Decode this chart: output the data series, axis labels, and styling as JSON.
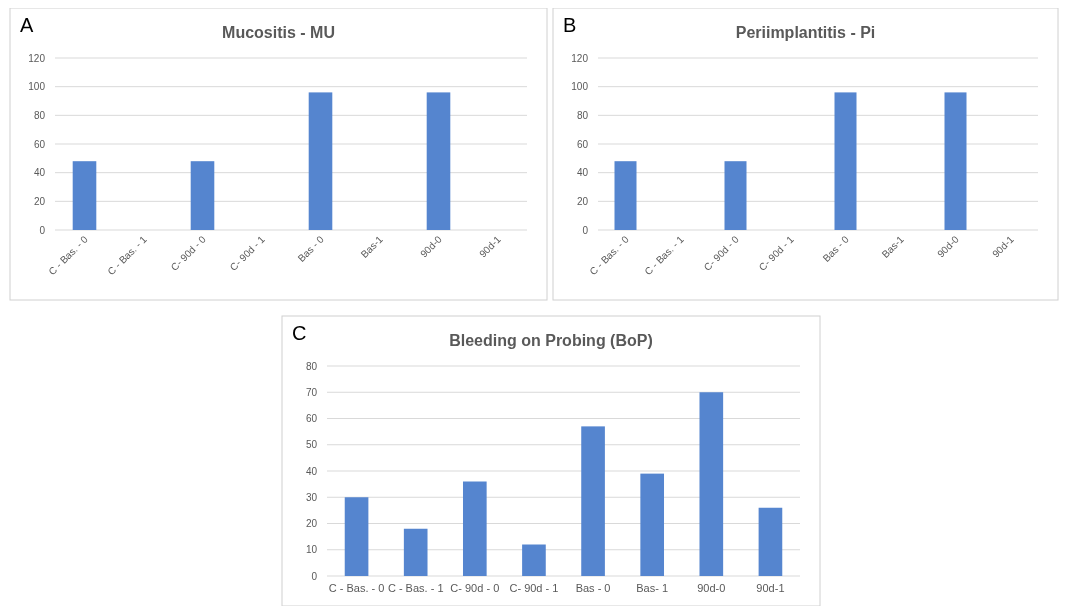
{
  "chart_data": [
    {
      "type": "bar",
      "title": "Mucositis - MU",
      "annotations": [
        "A"
      ],
      "categories": [
        "C - Bas. - 0",
        "C - Bas. - 1",
        "C- 90d - 0",
        "C- 90d - 1",
        "Bas - 0",
        "Bas-1",
        "90d-0",
        "90d-1"
      ],
      "values": [
        48,
        0,
        48,
        0,
        96,
        0,
        96,
        0
      ],
      "color": "#5585cf",
      "ylim": [
        0,
        120
      ],
      "yticks": [
        0,
        20,
        40,
        60,
        80,
        100,
        120
      ],
      "grid": "y"
    },
    {
      "type": "bar",
      "title": "Periimplantitis - Pi",
      "annotations": [
        "B"
      ],
      "categories": [
        "C - Bas. - 0",
        "C - Bas. - 1",
        "C- 90d - 0",
        "C- 90d - 1",
        "Bas - 0",
        "Bas-1",
        "90d-0",
        "90d-1"
      ],
      "values": [
        48,
        0,
        48,
        0,
        96,
        0,
        96,
        0
      ],
      "color": "#5585cf",
      "ylim": [
        0,
        120
      ],
      "yticks": [
        0,
        20,
        40,
        60,
        80,
        100,
        120
      ],
      "grid": "y"
    },
    {
      "type": "bar",
      "title": "Bleeding on Probing (BoP)",
      "annotations": [
        "C"
      ],
      "categories": [
        "C - Bas. - 0",
        "C - Bas. - 1",
        "C- 90d - 0",
        "C- 90d - 1",
        "Bas - 0",
        "Bas- 1",
        "90d-0",
        "90d-1"
      ],
      "values": [
        30,
        18,
        36,
        12,
        57,
        39,
        70,
        26
      ],
      "color": "#5585cf",
      "ylim": [
        0,
        80
      ],
      "yticks": [
        0,
        10,
        20,
        30,
        40,
        50,
        60,
        70,
        80
      ],
      "grid": "y"
    }
  ]
}
